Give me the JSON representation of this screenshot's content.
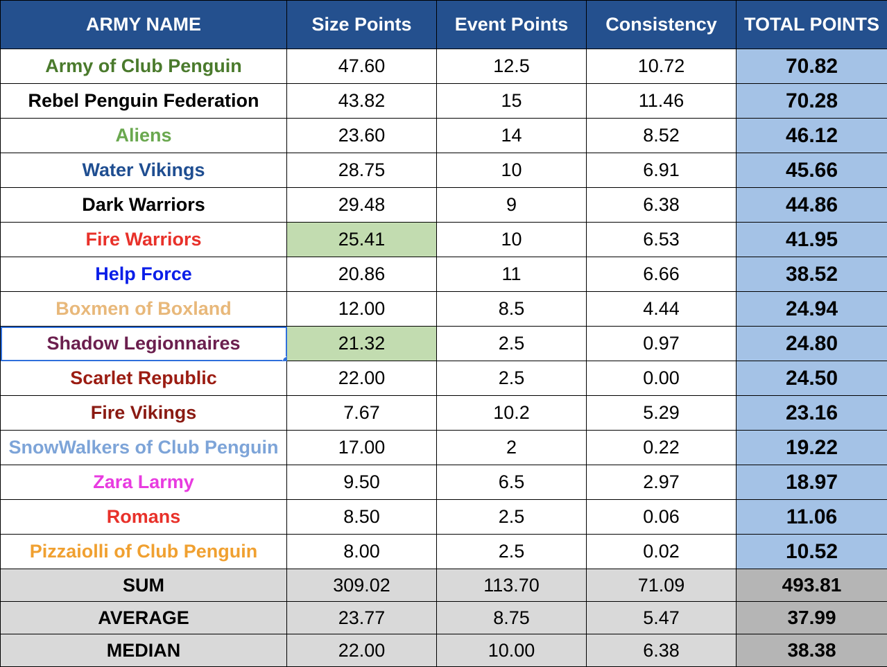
{
  "headers": {
    "name": "ARMY NAME",
    "size": "Size Points",
    "event": "Event Points",
    "consistency": "Consistency",
    "total": "TOTAL POINTS"
  },
  "colors": {
    "header_bg": "#24508e",
    "total_bg": "#a4c2e6",
    "highlight_bg": "#c2dcb0",
    "summary_bg": "#d9d9d9",
    "summary_total_bg": "#b5b5b5",
    "selection": "#2f6fdb"
  },
  "rows": [
    {
      "name": "Army of Club Penguin",
      "color": "#4a7a2c",
      "size": "47.60",
      "event": "12.5",
      "consistency": "10.72",
      "total": "70.82"
    },
    {
      "name": "Rebel Penguin Federation",
      "color": "#000000",
      "size": "43.82",
      "event": "15",
      "consistency": "11.46",
      "total": "70.28"
    },
    {
      "name": "Aliens",
      "color": "#6aa84f",
      "size": "23.60",
      "event": "14",
      "consistency": "8.52",
      "total": "46.12"
    },
    {
      "name": "Water Vikings",
      "color": "#1f4e91",
      "size": "28.75",
      "event": "10",
      "consistency": "6.91",
      "total": "45.66"
    },
    {
      "name": "Dark Warriors",
      "color": "#000000",
      "size": "29.48",
      "event": "9",
      "consistency": "6.38",
      "total": "44.86"
    },
    {
      "name": "Fire Warriors",
      "color": "#e8312a",
      "size": "25.41",
      "event": "10",
      "consistency": "6.53",
      "total": "41.95",
      "highlight_size": true
    },
    {
      "name": "Help Force",
      "color": "#0a1ee8",
      "size": "20.86",
      "event": "11",
      "consistency": "6.66",
      "total": "38.52"
    },
    {
      "name": "Boxmen of Boxland",
      "color": "#e8b87a",
      "size": "12.00",
      "event": "8.5",
      "consistency": "4.44",
      "total": "24.94"
    },
    {
      "name": "Shadow Legionnaires",
      "color": "#6b1f4e",
      "size": "21.32",
      "event": "2.5",
      "consistency": "0.97",
      "total": "24.80",
      "highlight_size": true,
      "selected": true
    },
    {
      "name": "Scarlet Republic",
      "color": "#9b1c12",
      "size": "22.00",
      "event": "2.5",
      "consistency": "0.00",
      "total": "24.50"
    },
    {
      "name": "Fire Vikings",
      "color": "#8a1a12",
      "size": "7.67",
      "event": "10.2",
      "consistency": "5.29",
      "total": "23.16"
    },
    {
      "name": "SnowWalkers of Club Penguin",
      "color": "#7da4d8",
      "size": "17.00",
      "event": "2",
      "consistency": "0.22",
      "total": "19.22"
    },
    {
      "name": "Zara Larmy",
      "color": "#e83be0",
      "size": "9.50",
      "event": "6.5",
      "consistency": "2.97",
      "total": "18.97"
    },
    {
      "name": "Romans",
      "color": "#e8312a",
      "size": "8.50",
      "event": "2.5",
      "consistency": "0.06",
      "total": "11.06"
    },
    {
      "name": "Pizzaiolli of Club Penguin",
      "color": "#f0a030",
      "size": "8.00",
      "event": "2.5",
      "consistency": "0.02",
      "total": "10.52"
    }
  ],
  "summary": [
    {
      "name": "SUM",
      "size": "309.02",
      "event": "113.70",
      "consistency": "71.09",
      "total": "493.81"
    },
    {
      "name": "AVERAGE",
      "size": "23.77",
      "event": "8.75",
      "consistency": "5.47",
      "total": "37.99"
    },
    {
      "name": "MEDIAN",
      "size": "22.00",
      "event": "10.00",
      "consistency": "6.38",
      "total": "38.38"
    }
  ]
}
